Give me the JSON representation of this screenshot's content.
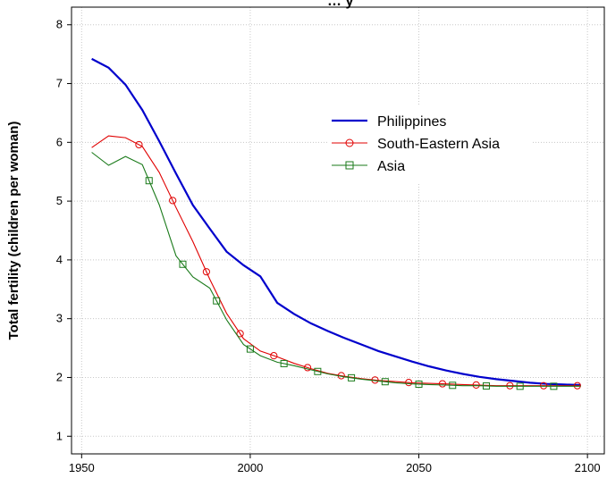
{
  "chart_data": {
    "type": "line",
    "title": "… y",
    "xlabel": "",
    "ylabel": "Total fertility (children per woman)",
    "xlim": [
      1947,
      2105
    ],
    "ylim": [
      0.7,
      8.3
    ],
    "x_ticks": [
      1950,
      2000,
      2050,
      2100
    ],
    "y_ticks": [
      1,
      2,
      3,
      4,
      5,
      6,
      7,
      8
    ],
    "grid": true,
    "legend_position": "top-right",
    "series": [
      {
        "name": "Philippines",
        "color": "#0000cc",
        "marker": "none",
        "x": [
          1953,
          1958,
          1963,
          1968,
          1973,
          1978,
          1983,
          1988,
          1993,
          1998,
          2003,
          2008,
          2013,
          2018,
          2023,
          2028,
          2033,
          2038,
          2043,
          2048,
          2053,
          2058,
          2063,
          2068,
          2073,
          2078,
          2083,
          2088,
          2093,
          2098
        ],
        "y": [
          7.42,
          7.27,
          6.98,
          6.55,
          6.02,
          5.47,
          4.93,
          4.53,
          4.14,
          3.91,
          3.72,
          3.27,
          3.08,
          2.92,
          2.79,
          2.67,
          2.56,
          2.45,
          2.36,
          2.27,
          2.19,
          2.12,
          2.06,
          2.01,
          1.97,
          1.94,
          1.91,
          1.89,
          1.88,
          1.87
        ]
      },
      {
        "name": "South-Eastern Asia",
        "color": "#e00000",
        "marker": "circle",
        "x": [
          1953,
          1958,
          1963,
          1968,
          1973,
          1978,
          1983,
          1988,
          1993,
          1998,
          2003,
          2008,
          2013,
          2018,
          2023,
          2028,
          2033,
          2038,
          2043,
          2048,
          2053,
          2058,
          2063,
          2068,
          2073,
          2078,
          2083,
          2088,
          2093,
          2098
        ],
        "y": [
          5.91,
          6.11,
          6.08,
          5.93,
          5.49,
          4.89,
          4.31,
          3.67,
          3.09,
          2.66,
          2.45,
          2.35,
          2.24,
          2.15,
          2.07,
          2.02,
          1.98,
          1.95,
          1.93,
          1.91,
          1.9,
          1.89,
          1.88,
          1.87,
          1.86,
          1.86,
          1.86,
          1.86,
          1.86,
          1.86
        ]
      },
      {
        "name": "Asia",
        "color": "#1a7a1a",
        "marker": "square",
        "x": [
          1953,
          1958,
          1963,
          1968,
          1973,
          1978,
          1983,
          1988,
          1993,
          1998,
          2003,
          2008,
          2013,
          2018,
          2023,
          2028,
          2033,
          2038,
          2043,
          2048,
          2053,
          2058,
          2063,
          2068,
          2073,
          2078,
          2083,
          2088,
          2093,
          2098
        ],
        "y": [
          5.83,
          5.61,
          5.76,
          5.62,
          4.94,
          4.07,
          3.71,
          3.52,
          2.98,
          2.56,
          2.37,
          2.26,
          2.2,
          2.13,
          2.06,
          2.01,
          1.97,
          1.94,
          1.91,
          1.89,
          1.88,
          1.87,
          1.86,
          1.86,
          1.85,
          1.85,
          1.85,
          1.85,
          1.85,
          1.85
        ]
      }
    ],
    "markers_every_years": 10,
    "marker_offsets": {
      "South-Eastern Asia": 1967,
      "Asia": 1970
    }
  }
}
